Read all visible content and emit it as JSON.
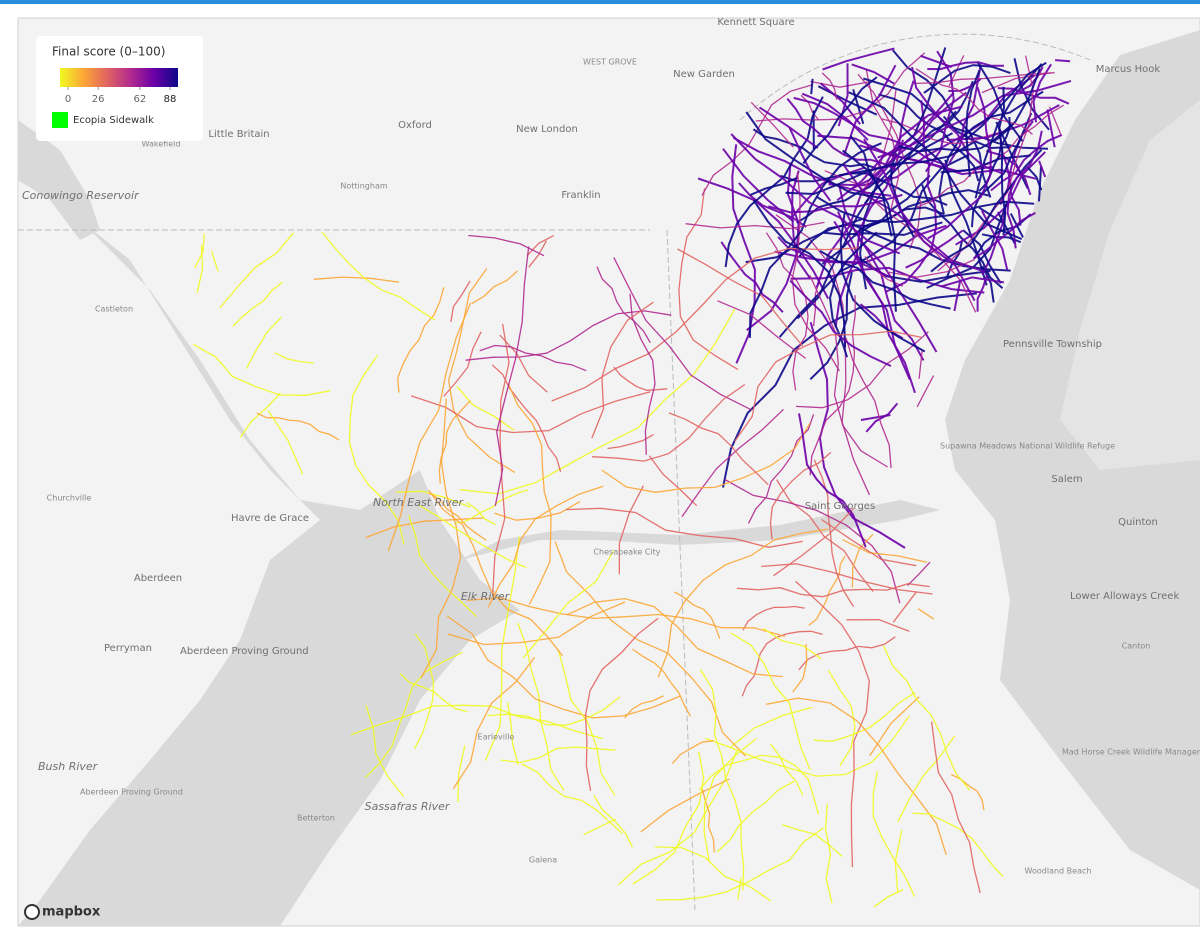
{
  "legend": {
    "title": "Final score (0–100)",
    "ticks": [
      0,
      26,
      62,
      88
    ],
    "colors": [
      "#f0f921",
      "#fca636",
      "#e16462",
      "#b12a90",
      "#6a00a8",
      "#0d0887"
    ],
    "items": [
      {
        "label": "Ecopia Sidewalk",
        "color": "#00ff00"
      }
    ]
  },
  "places": [
    "Kennett Square",
    "WEST GROVE",
    "New Garden",
    "Marcus Hook",
    "Little Britain",
    "Oxford",
    "New London",
    "Wakefield",
    "Conowingo Reservoir",
    "Nottingham",
    "Franklin",
    "Castleton",
    "Pennsville Township",
    "Supawna Meadows National Wildlife Refuge",
    "Salem",
    "Churchville",
    "Havre de Grace",
    "North East River",
    "Quinton",
    "Aberdeen",
    "Elk River",
    "Lower Alloways Creek",
    "Perryman",
    "Aberdeen Proving Ground",
    "Canton",
    "Mad Horse Creek Wildlife Management Area",
    "Bush River",
    "Aberdeen Proving Ground",
    "Sassafras River",
    "Betterton",
    "Galena",
    "Woodland Beach",
    "Chesapeake City",
    "Saint Georges",
    "Earleville"
  ],
  "attribution": "mapbox"
}
